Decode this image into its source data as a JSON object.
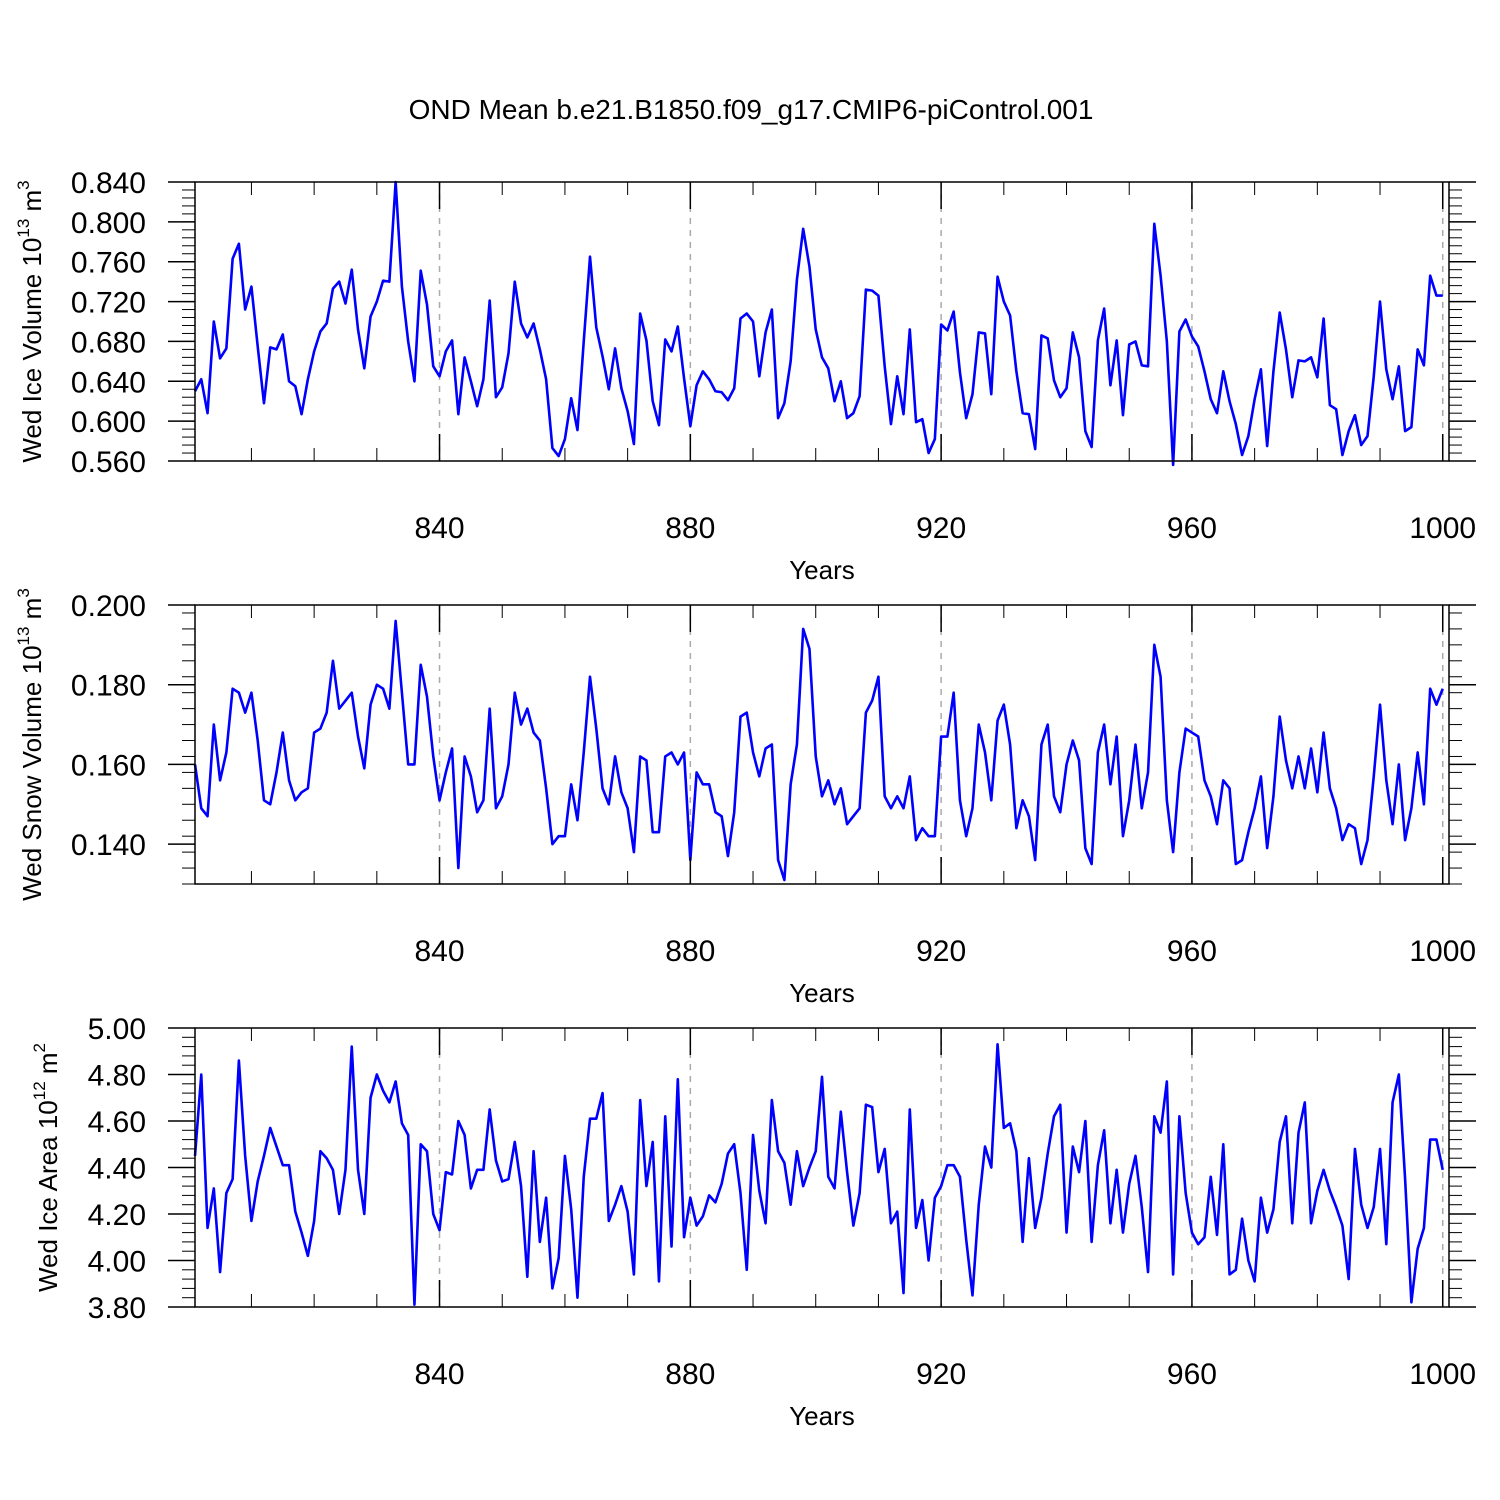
{
  "title": "OND Mean b.e21.B1850.f09_g17.CMIP6-piControl.001",
  "colors": {
    "line": "#0000ff",
    "axis": "#000000",
    "grid": "#aaaaaa"
  },
  "chart_data": [
    {
      "type": "line",
      "ylabel": "Wed Ice Volume 10",
      "ylabel_exp": "13",
      "ylabel_unit": "m",
      "ylabel_unit_exp": "3",
      "xlabel": "Years",
      "xlim": [
        801,
        1001
      ],
      "ylim": [
        0.56,
        0.84
      ],
      "xticks": [
        "840",
        "880",
        "920",
        "960",
        "1000"
      ],
      "yticks": [
        "0.560",
        "0.600",
        "0.640",
        "0.680",
        "0.720",
        "0.760",
        "0.800",
        "0.840"
      ],
      "grid": "vertical dashed",
      "x_start": 801,
      "values": [
        0.63,
        0.642,
        0.608,
        0.7,
        0.663,
        0.673,
        0.763,
        0.778,
        0.712,
        0.735,
        0.675,
        0.618,
        0.674,
        0.672,
        0.687,
        0.64,
        0.635,
        0.607,
        0.642,
        0.67,
        0.69,
        0.698,
        0.733,
        0.74,
        0.718,
        0.752,
        0.692,
        0.653,
        0.705,
        0.72,
        0.741,
        0.74,
        0.84,
        0.735,
        0.68,
        0.64,
        0.751,
        0.717,
        0.655,
        0.645,
        0.67,
        0.681,
        0.607,
        0.664,
        0.64,
        0.615,
        0.642,
        0.721,
        0.624,
        0.634,
        0.668,
        0.74,
        0.698,
        0.684,
        0.698,
        0.672,
        0.642,
        0.573,
        0.565,
        0.582,
        0.623,
        0.591,
        0.68,
        0.765,
        0.694,
        0.665,
        0.632,
        0.673,
        0.633,
        0.61,
        0.577,
        0.708,
        0.681,
        0.62,
        0.596,
        0.682,
        0.67,
        0.695,
        0.643,
        0.595,
        0.636,
        0.65,
        0.642,
        0.63,
        0.629,
        0.621,
        0.633,
        0.703,
        0.708,
        0.7,
        0.645,
        0.689,
        0.712,
        0.603,
        0.618,
        0.66,
        0.742,
        0.793,
        0.755,
        0.692,
        0.664,
        0.653,
        0.62,
        0.64,
        0.603,
        0.608,
        0.625,
        0.732,
        0.731,
        0.726,
        0.655,
        0.597,
        0.645,
        0.607,
        0.692,
        0.599,
        0.602,
        0.568,
        0.582,
        0.697,
        0.691,
        0.71,
        0.649,
        0.603,
        0.627,
        0.689,
        0.688,
        0.627,
        0.745,
        0.72,
        0.706,
        0.65,
        0.608,
        0.607,
        0.572,
        0.686,
        0.683,
        0.641,
        0.624,
        0.633,
        0.689,
        0.664,
        0.59,
        0.574,
        0.681,
        0.713,
        0.636,
        0.681,
        0.606,
        0.677,
        0.68,
        0.656,
        0.655,
        0.798,
        0.746,
        0.68,
        0.556,
        0.69,
        0.702,
        0.685,
        0.675,
        0.65,
        0.622,
        0.608,
        0.65,
        0.62,
        0.597,
        0.566,
        0.585,
        0.622,
        0.652,
        0.575,
        0.65,
        0.709,
        0.672,
        0.624,
        0.661,
        0.66,
        0.664,
        0.644,
        0.703,
        0.616,
        0.612,
        0.566,
        0.59,
        0.606,
        0.576,
        0.585,
        0.645,
        0.72,
        0.652,
        0.622,
        0.655,
        0.59,
        0.594,
        0.672,
        0.656,
        0.746,
        0.726,
        0.726
      ]
    },
    {
      "type": "line",
      "ylabel": "Wed Snow Volume 10",
      "ylabel_exp": "13",
      "ylabel_unit": "m",
      "ylabel_unit_exp": "3",
      "xlabel": "Years",
      "xlim": [
        801,
        1001
      ],
      "ylim": [
        0.13,
        0.2
      ],
      "xticks": [
        "840",
        "880",
        "920",
        "960",
        "1000"
      ],
      "yticks": [
        "0.140",
        "0.160",
        "0.180",
        "0.200"
      ],
      "grid": "vertical dashed",
      "x_start": 801,
      "values": [
        0.16,
        0.149,
        0.147,
        0.17,
        0.156,
        0.163,
        0.179,
        0.178,
        0.173,
        0.178,
        0.166,
        0.151,
        0.15,
        0.158,
        0.168,
        0.156,
        0.151,
        0.153,
        0.154,
        0.168,
        0.169,
        0.173,
        0.186,
        0.174,
        0.176,
        0.178,
        0.167,
        0.159,
        0.175,
        0.18,
        0.179,
        0.174,
        0.196,
        0.178,
        0.16,
        0.16,
        0.185,
        0.177,
        0.162,
        0.151,
        0.158,
        0.164,
        0.134,
        0.162,
        0.157,
        0.148,
        0.151,
        0.174,
        0.149,
        0.152,
        0.16,
        0.178,
        0.17,
        0.174,
        0.168,
        0.166,
        0.154,
        0.14,
        0.142,
        0.142,
        0.155,
        0.146,
        0.163,
        0.182,
        0.169,
        0.154,
        0.15,
        0.162,
        0.153,
        0.149,
        0.138,
        0.162,
        0.161,
        0.143,
        0.143,
        0.162,
        0.163,
        0.16,
        0.163,
        0.136,
        0.158,
        0.155,
        0.155,
        0.148,
        0.147,
        0.137,
        0.148,
        0.172,
        0.173,
        0.163,
        0.157,
        0.164,
        0.165,
        0.136,
        0.131,
        0.155,
        0.165,
        0.194,
        0.189,
        0.162,
        0.152,
        0.156,
        0.15,
        0.154,
        0.145,
        0.147,
        0.149,
        0.173,
        0.176,
        0.182,
        0.152,
        0.149,
        0.152,
        0.149,
        0.157,
        0.141,
        0.144,
        0.142,
        0.142,
        0.167,
        0.167,
        0.178,
        0.151,
        0.142,
        0.149,
        0.17,
        0.163,
        0.151,
        0.171,
        0.175,
        0.165,
        0.144,
        0.151,
        0.147,
        0.136,
        0.165,
        0.17,
        0.152,
        0.148,
        0.16,
        0.166,
        0.161,
        0.139,
        0.135,
        0.163,
        0.17,
        0.155,
        0.167,
        0.142,
        0.151,
        0.165,
        0.149,
        0.158,
        0.19,
        0.182,
        0.151,
        0.138,
        0.158,
        0.169,
        0.168,
        0.167,
        0.156,
        0.152,
        0.145,
        0.156,
        0.154,
        0.135,
        0.136,
        0.143,
        0.149,
        0.157,
        0.139,
        0.152,
        0.172,
        0.161,
        0.154,
        0.162,
        0.154,
        0.164,
        0.153,
        0.168,
        0.154,
        0.149,
        0.141,
        0.145,
        0.144,
        0.135,
        0.141,
        0.157,
        0.175,
        0.156,
        0.145,
        0.16,
        0.141,
        0.149,
        0.163,
        0.15,
        0.179,
        0.175,
        0.179
      ]
    },
    {
      "type": "line",
      "ylabel": "Wed Ice Area 10",
      "ylabel_exp": "12",
      "ylabel_unit": "m",
      "ylabel_unit_exp": "2",
      "xlabel": "Years",
      "xlim": [
        801,
        1001
      ],
      "ylim": [
        3.8,
        5.0
      ],
      "xticks": [
        "840",
        "880",
        "920",
        "960",
        "1000"
      ],
      "yticks": [
        "3.80",
        "4.00",
        "4.20",
        "4.40",
        "4.60",
        "4.80",
        "5.00"
      ],
      "grid": "vertical dashed",
      "x_start": 801,
      "values": [
        4.45,
        4.8,
        4.14,
        4.31,
        3.95,
        4.29,
        4.35,
        4.86,
        4.45,
        4.17,
        4.34,
        4.45,
        4.57,
        4.49,
        4.41,
        4.41,
        4.21,
        4.12,
        4.02,
        4.17,
        4.47,
        4.44,
        4.39,
        4.2,
        4.39,
        4.92,
        4.39,
        4.2,
        4.7,
        4.8,
        4.73,
        4.68,
        4.77,
        4.59,
        4.54,
        3.81,
        4.5,
        4.47,
        4.2,
        4.13,
        4.38,
        4.37,
        4.6,
        4.54,
        4.31,
        4.39,
        4.39,
        4.65,
        4.43,
        4.34,
        4.35,
        4.51,
        4.32,
        3.93,
        4.47,
        4.08,
        4.27,
        3.88,
        4.01,
        4.45,
        4.22,
        3.84,
        4.36,
        4.61,
        4.61,
        4.72,
        4.17,
        4.24,
        4.32,
        4.21,
        3.94,
        4.69,
        4.32,
        4.51,
        3.91,
        4.62,
        4.06,
        4.78,
        4.1,
        4.27,
        4.15,
        4.19,
        4.28,
        4.25,
        4.33,
        4.46,
        4.5,
        4.29,
        3.96,
        4.54,
        4.3,
        4.16,
        4.69,
        4.47,
        4.42,
        4.24,
        4.47,
        4.32,
        4.4,
        4.47,
        4.79,
        4.36,
        4.31,
        4.64,
        4.38,
        4.15,
        4.29,
        4.67,
        4.66,
        4.38,
        4.48,
        4.16,
        4.21,
        3.86,
        4.65,
        4.14,
        4.26,
        4.0,
        4.27,
        4.32,
        4.41,
        4.41,
        4.36,
        4.09,
        3.85,
        4.24,
        4.49,
        4.4,
        4.93,
        4.57,
        4.59,
        4.47,
        4.08,
        4.44,
        4.14,
        4.27,
        4.46,
        4.62,
        4.67,
        4.12,
        4.49,
        4.38,
        4.6,
        4.08,
        4.41,
        4.56,
        4.16,
        4.39,
        4.12,
        4.33,
        4.45,
        4.23,
        3.95,
        4.62,
        4.55,
        4.77,
        3.94,
        4.62,
        4.29,
        4.12,
        4.07,
        4.1,
        4.36,
        4.11,
        4.5,
        3.94,
        3.96,
        4.18,
        4.0,
        3.91,
        4.27,
        4.12,
        4.22,
        4.51,
        4.62,
        4.16,
        4.55,
        4.68,
        4.16,
        4.3,
        4.39,
        4.3,
        4.23,
        4.15,
        3.92,
        4.48,
        4.24,
        4.14,
        4.23,
        4.48,
        4.07,
        4.68,
        4.8,
        4.35,
        3.82,
        4.05,
        4.14,
        4.52,
        4.52,
        4.39
      ]
    }
  ]
}
